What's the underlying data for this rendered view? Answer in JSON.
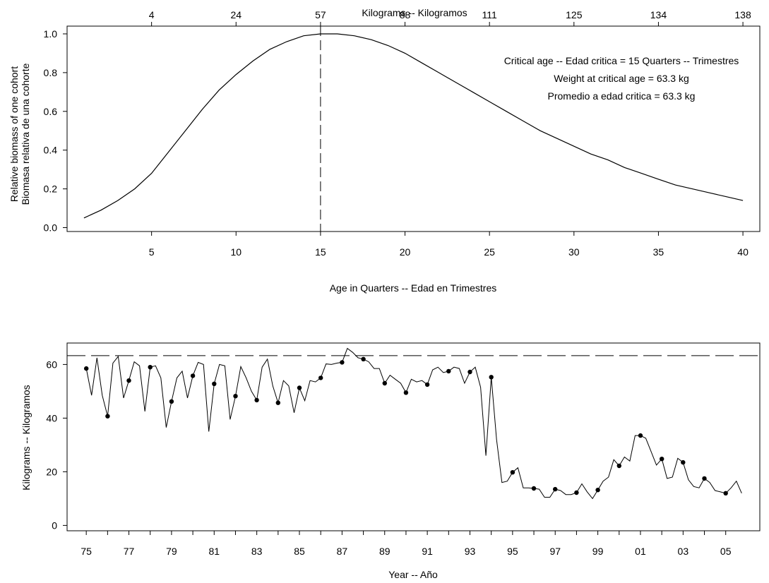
{
  "chart_data": [
    {
      "type": "line",
      "xlabel": "Age in Quarters -- Edad en Trimestres",
      "top_axis_label": "Kilograms -- Kilogramos",
      "ylabel_line1": "Relative biomass of one cohort",
      "ylabel_line2": "Biomasa relativa de una cohorte",
      "xlim": [
        0,
        41
      ],
      "ylim": [
        -0.02,
        1.04
      ],
      "x_ticks": [
        5,
        10,
        15,
        20,
        25,
        30,
        35,
        40
      ],
      "y_ticks": [
        "0.0",
        "0.2",
        "0.4",
        "0.6",
        "0.8",
        "1.0"
      ],
      "top_ticks": [
        {
          "age": 5,
          "label": "4"
        },
        {
          "age": 10,
          "label": "24"
        },
        {
          "age": 15,
          "label": "57"
        },
        {
          "age": 20,
          "label": "88"
        },
        {
          "age": 25,
          "label": "111"
        },
        {
          "age": 30,
          "label": "125"
        },
        {
          "age": 35,
          "label": "134"
        },
        {
          "age": 40,
          "label": "138"
        }
      ],
      "critical_age_line": 15,
      "annotations": [
        "Critical age -- Edad critica = 15 Quarters -- Trimestres",
        "Weight at critical age = 63.3 kg",
        "Promedio a edad critica = 63.3 kg"
      ],
      "series": [
        {
          "x": [
            1,
            2,
            3,
            4,
            5,
            6,
            7,
            8,
            9,
            10,
            11,
            12,
            13,
            14,
            15,
            16,
            17,
            18,
            19,
            20,
            21,
            22,
            23,
            24,
            25,
            26,
            27,
            28,
            29,
            30,
            31,
            32,
            33,
            34,
            35,
            36,
            37,
            38,
            39,
            40
          ],
          "y": [
            0.05,
            0.09,
            0.14,
            0.2,
            0.28,
            0.39,
            0.5,
            0.61,
            0.71,
            0.79,
            0.86,
            0.92,
            0.96,
            0.99,
            1.0,
            1.0,
            0.99,
            0.97,
            0.94,
            0.9,
            0.85,
            0.8,
            0.75,
            0.7,
            0.65,
            0.6,
            0.55,
            0.5,
            0.46,
            0.42,
            0.38,
            0.35,
            0.31,
            0.28,
            0.25,
            0.22,
            0.2,
            0.18,
            0.16,
            0.14
          ]
        }
      ]
    },
    {
      "type": "line",
      "xlabel": "Year -- Año",
      "ylabel": "Kilograms -- Kilogramos",
      "xlim": [
        1974.1,
        2006.6
      ],
      "ylim": [
        -2,
        68
      ],
      "y_ticks": [
        0,
        20,
        40,
        60
      ],
      "x_tick_labels": [
        "75",
        "77",
        "79",
        "81",
        "83",
        "85",
        "87",
        "89",
        "91",
        "93",
        "95",
        "97",
        "99",
        "01",
        "03",
        "05"
      ],
      "x_tick_years": [
        1975,
        1976,
        1977,
        1978,
        1979,
        1980,
        1981,
        1982,
        1983,
        1984,
        1985,
        1986,
        1987,
        1988,
        1989,
        1990,
        1991,
        1992,
        1993,
        1994,
        1995,
        1996,
        1997,
        1998,
        1999,
        2000,
        2001,
        2002,
        2003,
        2004,
        2005
      ],
      "reference_line": 63.3,
      "series": [
        {
          "name": "quarterly",
          "x": [
            1975.0,
            1975.25,
            1975.5,
            1975.75,
            1976.0,
            1976.25,
            1976.5,
            1976.75,
            1977.0,
            1977.25,
            1977.5,
            1977.75,
            1978.0,
            1978.25,
            1978.5,
            1978.75,
            1979.0,
            1979.25,
            1979.5,
            1979.75,
            1980.0,
            1980.25,
            1980.5,
            1980.75,
            1981.0,
            1981.25,
            1981.5,
            1981.75,
            1982.0,
            1982.25,
            1982.5,
            1982.75,
            1983.0,
            1983.25,
            1983.5,
            1983.75,
            1984.0,
            1984.25,
            1984.5,
            1984.75,
            1985.0,
            1985.25,
            1985.5,
            1985.75,
            1986.0,
            1986.25,
            1986.5,
            1986.75,
            1987.0,
            1987.25,
            1987.5,
            1987.75,
            1988.0,
            1988.25,
            1988.5,
            1988.75,
            1989.0,
            1989.25,
            1989.5,
            1989.75,
            1990.0,
            1990.25,
            1990.5,
            1990.75,
            1991.0,
            1991.25,
            1991.5,
            1991.75,
            1992.0,
            1992.25,
            1992.5,
            1992.75,
            1993.0,
            1993.25,
            1993.5,
            1993.75,
            1994.0,
            1994.25,
            1994.5,
            1994.75,
            1995.0,
            1995.25,
            1995.5,
            1995.75,
            1996.0,
            1996.25,
            1996.5,
            1996.75,
            1997.0,
            1997.25,
            1997.5,
            1997.75,
            1998.0,
            1998.25,
            1998.5,
            1998.75,
            1999.0,
            1999.25,
            1999.5,
            1999.75,
            2000.0,
            2000.25,
            2000.5,
            2000.75,
            2001.0,
            2001.25,
            2001.5,
            2001.75,
            2002.0,
            2002.25,
            2002.5,
            2002.75,
            2003.0,
            2003.25,
            2003.5,
            2003.75,
            2004.0,
            2004.25,
            2004.5,
            2004.75,
            2005.0,
            2005.25,
            2005.5,
            2005.75
          ],
          "y": [
            58.5,
            48.5,
            62.5,
            48.5,
            40.7,
            60.5,
            63,
            47.5,
            54,
            61,
            59.5,
            42.5,
            59,
            59.5,
            55,
            36.5,
            46.2,
            55,
            57.5,
            47.5,
            55.8,
            60.8,
            60,
            35,
            52.8,
            60,
            59.5,
            39.5,
            48.2,
            59.2,
            55,
            50,
            46.7,
            59,
            62,
            52,
            45.7,
            54,
            52,
            42,
            51.3,
            46.5,
            54,
            53.5,
            55,
            60.2,
            60,
            60.5,
            60.8,
            66,
            64.5,
            62.5,
            62,
            61,
            58.5,
            58.5,
            53,
            56,
            54.5,
            53,
            49.5,
            54.5,
            53.5,
            54,
            52.5,
            58,
            59,
            57,
            57.5,
            59,
            58.5,
            53,
            57.2,
            59,
            51.5,
            26,
            55.3,
            32,
            16,
            16.5,
            19.8,
            21.5,
            14,
            14,
            13.8,
            13.5,
            10.5,
            10.5,
            13.5,
            13,
            11.5,
            11.5,
            12.2,
            15.5,
            12.5,
            10,
            13.2,
            16.5,
            18,
            24.5,
            22.2,
            25.5,
            24,
            33.5,
            33.5,
            32.5,
            27.5,
            22.5,
            24.8,
            17.5,
            18,
            25,
            23.5,
            17,
            14.5,
            14,
            17.5,
            16,
            13,
            12.5,
            12,
            14,
            16.5,
            12
          ]
        },
        {
          "name": "annual",
          "x": [
            1975,
            1976,
            1977,
            1978,
            1979,
            1980,
            1981,
            1982,
            1983,
            1984,
            1985,
            1986,
            1987,
            1988,
            1989,
            1990,
            1991,
            1992,
            1993,
            1994,
            1995,
            1996,
            1997,
            1998,
            1999,
            2000,
            2001,
            2002,
            2003,
            2004,
            2005
          ],
          "y": [
            58.5,
            40.7,
            54,
            59,
            46.2,
            55.8,
            52.8,
            48.2,
            46.7,
            45.7,
            51.3,
            55,
            60.8,
            62,
            53,
            49.5,
            52.5,
            57.5,
            57.2,
            55.3,
            19.8,
            13.8,
            13.5,
            12.2,
            13.2,
            22.2,
            33.5,
            24.8,
            23.5,
            17.5,
            12
          ]
        }
      ]
    }
  ]
}
